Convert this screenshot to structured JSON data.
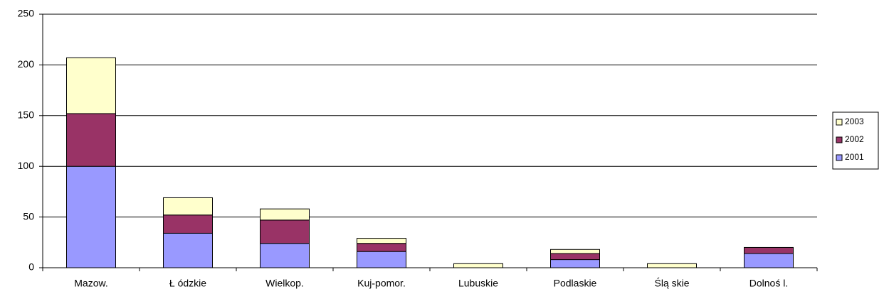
{
  "chart_data": {
    "type": "stacked_bar",
    "categories": [
      "Mazow.",
      "Ł ódzkie",
      "Wielkop.",
      "Kuj-pomor.",
      "Lubuskie",
      "Podlaskie",
      "Ślą skie",
      "Dolnoś l."
    ],
    "series": [
      {
        "name": "2001",
        "color": "#9999ff",
        "values": [
          100,
          34,
          24,
          16,
          0,
          8,
          0,
          14
        ]
      },
      {
        "name": "2002",
        "color": "#993366",
        "values": [
          52,
          18,
          23,
          8,
          0,
          6,
          0,
          6
        ]
      },
      {
        "name": "2003",
        "color": "#ffffcc",
        "values": [
          55,
          17,
          11,
          5,
          4,
          4,
          4,
          0
        ]
      }
    ],
    "ylim": [
      0,
      250
    ],
    "yticks": [
      0,
      50,
      100,
      150,
      200,
      250
    ],
    "grid": true,
    "legend": "right"
  }
}
